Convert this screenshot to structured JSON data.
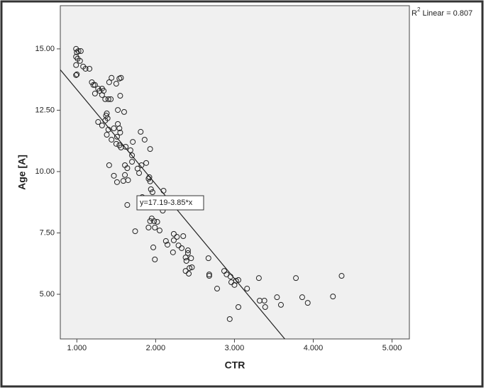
{
  "chart_data": {
    "type": "scatter",
    "x_label": "CTR",
    "y_label": "Age [A]",
    "r_squared_label": [
      "R",
      "2",
      " Linear = 0.807"
    ],
    "fit_label": "y=17.19-3.85*x",
    "fit": {
      "intercept": 17.19,
      "slope": -3.85
    },
    "xlim": [
      0.79,
      5.22
    ],
    "ylim": [
      3.18,
      16.76
    ],
    "xticks": [
      {
        "value": 1,
        "label": "1.000"
      },
      {
        "value": 2,
        "label": "2.000"
      },
      {
        "value": 3,
        "label": "3.000"
      },
      {
        "value": 4,
        "label": "4.000"
      },
      {
        "value": 5,
        "label": "5.000"
      }
    ],
    "yticks": [
      {
        "value": 5,
        "label": "5.00"
      },
      {
        "value": 7.5,
        "label": "7.50"
      },
      {
        "value": 10,
        "label": "10.00"
      },
      {
        "value": 12.5,
        "label": "12.50"
      },
      {
        "value": 15,
        "label": "15.00"
      }
    ],
    "color": "#222222",
    "x": [
      0.99,
      1.0,
      1.02,
      1.05,
      0.99,
      1.01,
      1.04,
      0.99,
      1.0,
      0.99,
      1.08,
      1.11,
      1.16,
      1.19,
      1.21,
      1.23,
      1.23,
      1.27,
      1.29,
      1.32,
      1.32,
      1.34,
      1.36,
      1.4,
      1.43,
      1.41,
      1.44,
      1.5,
      1.54,
      1.56,
      1.55,
      1.52,
      1.6,
      1.38,
      1.37,
      1.39,
      1.36,
      1.27,
      1.32,
      1.4,
      1.47,
      1.52,
      1.54,
      1.55,
      1.51,
      1.38,
      1.44,
      1.5,
      1.54,
      1.56,
      1.62,
      1.68,
      1.71,
      1.81,
      1.86,
      1.93,
      1.7,
      1.7,
      1.61,
      1.64,
      1.61,
      1.65,
      1.59,
      1.51,
      1.41,
      1.47,
      1.77,
      1.79,
      1.82,
      1.88,
      1.92,
      1.93,
      1.91,
      1.94,
      1.96,
      1.83,
      1.82,
      2.1,
      2.12,
      2.03,
      1.86,
      2.09,
      1.64,
      1.74,
      1.93,
      1.95,
      1.98,
      2.02,
      1.99,
      2.05,
      1.91,
      2.13,
      2.15,
      1.97,
      1.99,
      2.23,
      2.27,
      2.22,
      2.23,
      2.29,
      2.35,
      2.33,
      2.38,
      2.39,
      2.41,
      2.41,
      2.43,
      2.42,
      2.46,
      2.45,
      2.38,
      2.67,
      2.68,
      2.68,
      2.87,
      2.9,
      2.95,
      2.96,
      3.02,
      3.05,
      3.0,
      2.78,
      3.05,
      2.94,
      3.16,
      3.31,
      3.32,
      3.38,
      3.39,
      3.54,
      3.59,
      3.78,
      3.86,
      3.93,
      4.25,
      4.36
    ],
    "values": [
      15.0,
      14.86,
      14.91,
      14.91,
      14.68,
      14.6,
      14.51,
      14.34,
      13.96,
      13.93,
      14.28,
      14.19,
      14.19,
      13.64,
      13.53,
      13.53,
      13.18,
      13.38,
      13.29,
      13.38,
      13.12,
      13.29,
      12.95,
      12.95,
      12.95,
      13.64,
      13.82,
      13.58,
      13.79,
      13.82,
      13.09,
      12.51,
      12.43,
      12.37,
      12.28,
      12.17,
      12.08,
      12.02,
      11.88,
      11.71,
      11.76,
      11.94,
      11.76,
      11.59,
      11.42,
      11.5,
      11.3,
      11.13,
      11.07,
      10.98,
      11.01,
      10.87,
      11.21,
      11.62,
      11.3,
      10.92,
      10.66,
      10.4,
      10.26,
      10.14,
      9.86,
      9.65,
      9.62,
      9.57,
      10.26,
      9.83,
      10.12,
      9.94,
      10.26,
      10.35,
      9.77,
      9.6,
      9.71,
      9.28,
      9.16,
      8.96,
      8.87,
      9.22,
      8.9,
      8.82,
      8.61,
      8.41,
      8.64,
      7.57,
      7.98,
      8.09,
      7.98,
      7.95,
      7.72,
      7.6,
      7.72,
      7.17,
      7.02,
      6.91,
      6.42,
      7.46,
      7.34,
      6.71,
      7.2,
      6.99,
      7.37,
      6.88,
      6.5,
      6.36,
      6.68,
      6.79,
      6.07,
      5.84,
      6.1,
      6.47,
      5.95,
      6.47,
      5.81,
      5.75,
      5.95,
      5.81,
      5.72,
      5.49,
      5.55,
      5.58,
      5.38,
      5.23,
      4.48,
      3.99,
      5.23,
      5.66,
      4.74,
      4.74,
      4.48,
      4.88,
      4.57,
      5.66,
      4.88,
      4.65,
      4.91,
      5.75
    ]
  }
}
